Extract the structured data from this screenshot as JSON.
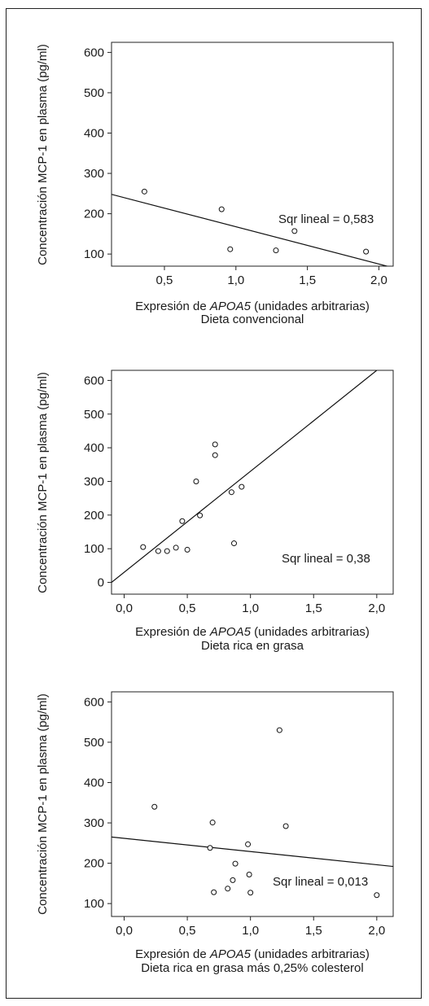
{
  "chart_data": [
    {
      "type": "scatter",
      "title": "",
      "xlabel": "Expresión de APOA5 (unidades arbitrarias)",
      "xlabel_parts": [
        "Expresión de ",
        "APOA5",
        " (unidades arbitrarias)"
      ],
      "subtitle": "Dieta convencional",
      "ylabel": "Concentración MCP-1 en plasma (pg/ml)",
      "xlim": [
        0.13,
        2.1
      ],
      "ylim": [
        70,
        625
      ],
      "xticks": [
        0.5,
        1.0,
        1.5,
        2.0
      ],
      "xtick_labels": [
        "0,5",
        "1,0",
        "1,5",
        "2,0"
      ],
      "yticks": [
        100,
        200,
        300,
        400,
        500,
        600
      ],
      "ytick_labels": [
        "100",
        "200",
        "300",
        "400",
        "500",
        "600"
      ],
      "points": [
        {
          "x": 0.36,
          "y": 255
        },
        {
          "x": 0.9,
          "y": 211
        },
        {
          "x": 0.96,
          "y": 112
        },
        {
          "x": 1.28,
          "y": 109
        },
        {
          "x": 1.41,
          "y": 157
        },
        {
          "x": 1.91,
          "y": 106
        }
      ],
      "fit_line": [
        {
          "x": 0.13,
          "y": 248
        },
        {
          "x": 2.1,
          "y": 66
        }
      ],
      "annotation": "Sqr lineal = 0,583",
      "grid": false
    },
    {
      "type": "scatter",
      "title": "",
      "xlabel": "Expresión de APOA5 (unidades arbitrarias)",
      "xlabel_parts": [
        "Expresión de ",
        "APOA5",
        " (unidades arbitrarias)"
      ],
      "subtitle": "Dieta rica en grasa",
      "ylabel": "Concentración MCP-1 en plasma (pg/ml)",
      "xlim": [
        -0.1,
        2.13
      ],
      "ylim": [
        -35,
        630
      ],
      "xticks": [
        0.0,
        0.5,
        1.0,
        1.5,
        2.0
      ],
      "xtick_labels": [
        "0,0",
        "0,5",
        "1,0",
        "1,5",
        "2,0"
      ],
      "yticks": [
        0,
        100,
        200,
        300,
        400,
        500,
        600
      ],
      "ytick_labels": [
        "0",
        "100",
        "200",
        "300",
        "400",
        "500",
        "600"
      ],
      "points": [
        {
          "x": 0.15,
          "y": 105
        },
        {
          "x": 0.27,
          "y": 93
        },
        {
          "x": 0.34,
          "y": 93
        },
        {
          "x": 0.41,
          "y": 103
        },
        {
          "x": 0.46,
          "y": 182
        },
        {
          "x": 0.5,
          "y": 97
        },
        {
          "x": 0.57,
          "y": 300
        },
        {
          "x": 0.6,
          "y": 199
        },
        {
          "x": 0.72,
          "y": 410
        },
        {
          "x": 0.72,
          "y": 378
        },
        {
          "x": 0.85,
          "y": 268
        },
        {
          "x": 0.87,
          "y": 116
        },
        {
          "x": 0.93,
          "y": 284
        }
      ],
      "fit_line": [
        {
          "x": -0.1,
          "y": 0
        },
        {
          "x": 2.0,
          "y": 630
        }
      ],
      "annotation": "Sqr lineal = 0,38",
      "grid": false
    },
    {
      "type": "scatter",
      "title": "",
      "xlabel": "Expresión de APOA5 (unidades arbitrarias)",
      "xlabel_parts": [
        "Expresión de ",
        "APOA5",
        " (unidades arbitrarias)"
      ],
      "subtitle": "Dieta rica en grasa más 0,25% colesterol",
      "ylabel": "Concentración MCP-1 en plasma (pg/ml)",
      "xlim": [
        -0.1,
        2.13
      ],
      "ylim": [
        68,
        625
      ],
      "xticks": [
        0.0,
        0.5,
        1.0,
        1.5,
        2.0
      ],
      "xtick_labels": [
        "0,0",
        "0,5",
        "1,0",
        "1,5",
        "2,0"
      ],
      "yticks": [
        100,
        200,
        300,
        400,
        500,
        600
      ],
      "ytick_labels": [
        "100",
        "200",
        "300",
        "400",
        "500",
        "600"
      ],
      "points": [
        {
          "x": 0.24,
          "y": 340
        },
        {
          "x": 0.68,
          "y": 238
        },
        {
          "x": 0.7,
          "y": 301
        },
        {
          "x": 0.71,
          "y": 128
        },
        {
          "x": 0.82,
          "y": 137
        },
        {
          "x": 0.86,
          "y": 158
        },
        {
          "x": 0.88,
          "y": 199
        },
        {
          "x": 0.98,
          "y": 247
        },
        {
          "x": 0.99,
          "y": 172
        },
        {
          "x": 1.0,
          "y": 127
        },
        {
          "x": 1.23,
          "y": 530
        },
        {
          "x": 1.28,
          "y": 292
        },
        {
          "x": 2.0,
          "y": 121
        }
      ],
      "fit_line": [
        {
          "x": -0.1,
          "y": 265
        },
        {
          "x": 2.13,
          "y": 192
        }
      ],
      "annotation": "Sqr lineal = 0,013",
      "grid": false
    }
  ]
}
